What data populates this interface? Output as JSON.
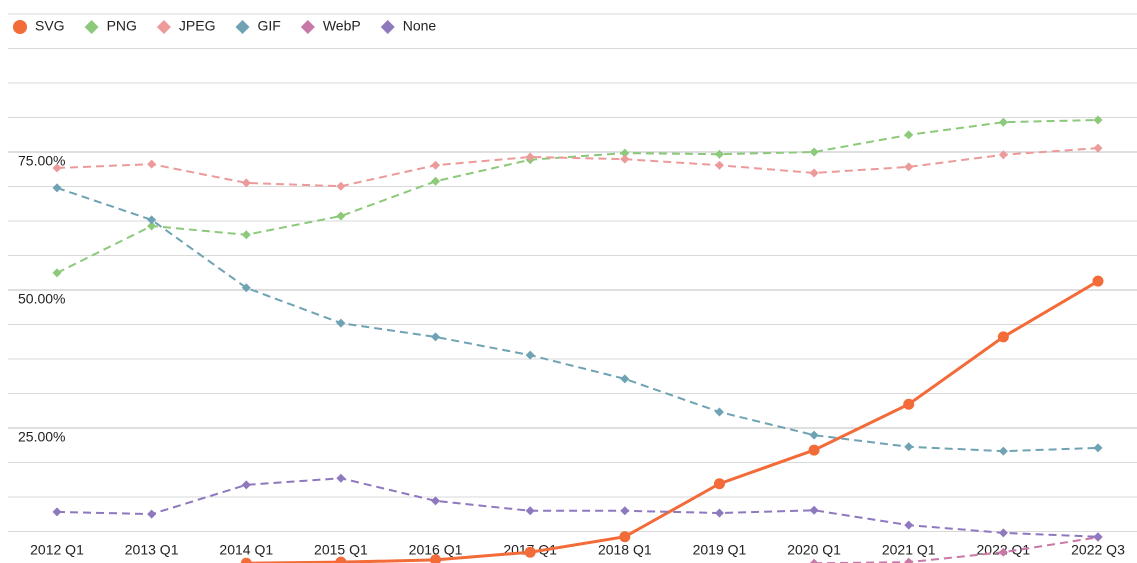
{
  "chart_data": {
    "type": "line",
    "categories": [
      "2012 Q1",
      "2013 Q1",
      "2014 Q1",
      "2015 Q1",
      "2016 Q1",
      "2017 Q1",
      "2018 Q1",
      "2019 Q1",
      "2020 Q1",
      "2021 Q1",
      "2022 Q1",
      "2022 Q3"
    ],
    "series": [
      {
        "name": "SVG",
        "color": "#f26b38",
        "dashed": false,
        "marker": "circle",
        "values": [
          null,
          null,
          0.5,
          0.7,
          1.1,
          2.5,
          5.3,
          14.9,
          21.0,
          29.3,
          41.5,
          51.6
        ]
      },
      {
        "name": "PNG",
        "color": "#8cc97a",
        "dashed": true,
        "marker": "diamond",
        "values": [
          53.1,
          61.6,
          60.0,
          63.4,
          69.7,
          73.6,
          74.8,
          74.6,
          75.0,
          78.1,
          80.4,
          80.8
        ]
      },
      {
        "name": "JPEG",
        "color": "#ec9a9a",
        "dashed": true,
        "marker": "diamond",
        "values": [
          72.1,
          72.8,
          69.4,
          68.8,
          72.6,
          74.1,
          73.7,
          72.6,
          71.2,
          72.3,
          74.5,
          75.7
        ]
      },
      {
        "name": "GIF",
        "color": "#6fa3b4",
        "dashed": true,
        "marker": "diamond",
        "values": [
          68.5,
          62.7,
          50.4,
          44.0,
          41.5,
          38.2,
          33.9,
          27.9,
          23.7,
          21.6,
          20.8,
          21.4
        ]
      },
      {
        "name": "WebP",
        "color": "#c877a7",
        "dashed": true,
        "marker": "diamond",
        "values": [
          null,
          null,
          null,
          null,
          null,
          null,
          null,
          null,
          0.5,
          0.7,
          2.5,
          5.2
        ]
      },
      {
        "name": "None",
        "color": "#8e78be",
        "dashed": true,
        "marker": "diamond",
        "values": [
          9.8,
          9.4,
          14.7,
          15.9,
          11.8,
          10.0,
          10.0,
          9.6,
          10.1,
          7.4,
          6.0,
          5.3
        ]
      }
    ],
    "ylim": [
      0,
      100
    ],
    "yticks": [
      {
        "value": 25,
        "label": "25.00%"
      },
      {
        "value": 50,
        "label": "50.00%"
      },
      {
        "value": 75,
        "label": "75.00%"
      }
    ],
    "minor_yticks": [
      6.25,
      12.5,
      18.75,
      25,
      31.25,
      37.5,
      43.75,
      50,
      56.25,
      62.5,
      68.75,
      75,
      81.25,
      87.5,
      93.75,
      100
    ],
    "grid": true,
    "legend": "top-left"
  }
}
